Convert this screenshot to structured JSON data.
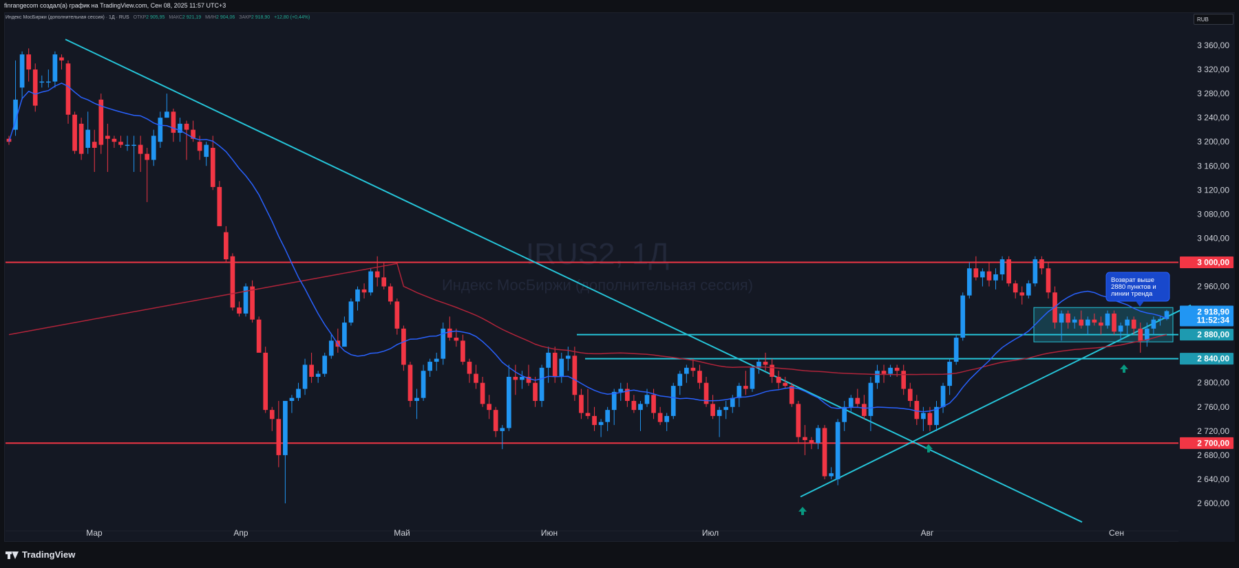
{
  "header": {
    "credit": "finrangecom создал(а) график на TradingView.com, Сен 08, 2025 11:57 UTC+3"
  },
  "legend": {
    "instrument": "Индекс МосБиржи (дополнительная сессия) · 1Д · RUS",
    "open_label": "ОТКР",
    "open": "2 905,95",
    "high_label": "МАКС",
    "high": "2 921,19",
    "low_label": "МИН",
    "low": "2 904,06",
    "close_label": "ЗАКР",
    "close": "2 918,90",
    "change": "+12,80 (+0,44%)"
  },
  "currency": "RUB",
  "watermark": {
    "symbol": "IRUS2, 1Д",
    "name": "Индекс МосБиржи (дополнительная сессия)"
  },
  "price_axis": {
    "ticks": [
      "3 360,00",
      "3 320,00",
      "3 280,00",
      "3 240,00",
      "3 200,00",
      "3 160,00",
      "3 120,00",
      "3 080,00",
      "3 040,00",
      "2 960,00",
      "2 880,00",
      "2 840,00",
      "2 800,00",
      "2 760,00",
      "2 720,00",
      "2 680,00",
      "2 640,00",
      "2 600,00"
    ],
    "tick_values": [
      3360,
      3320,
      3280,
      3240,
      3200,
      3160,
      3120,
      3080,
      3040,
      2960,
      2880,
      2840,
      2800,
      2760,
      2720,
      2680,
      2640,
      2600
    ],
    "range": [
      2580,
      3380
    ]
  },
  "price_labels": {
    "level_3000": "3 000,00",
    "level_2700": "2 700,00",
    "level_2880": "2 880,00",
    "level_2840": "2 840,00",
    "last_price": "2 918,90",
    "countdown": "11:52:34"
  },
  "time_axis": {
    "labels": [
      "Мар",
      "Апр",
      "Май",
      "Июн",
      "Июл",
      "Авг",
      "Сен"
    ]
  },
  "annotation": {
    "text_line1": "Возврат выше",
    "text_line2": "2880 пунктов и",
    "text_line3": "линии тренда"
  },
  "colors": {
    "up": "#2196f3",
    "down": "#f23645",
    "trend": "#26c6da",
    "ma_fast": "#2962ff",
    "ma_slow": "#b2243a",
    "level_red": "#f23645",
    "arrow": "#089981"
  },
  "chart_data": {
    "type": "candlestick",
    "candles_ohlc_approx": [
      [
        3205,
        3210,
        3195,
        3200
      ],
      [
        3220,
        3335,
        3210,
        3270
      ],
      [
        3290,
        3350,
        3270,
        3345
      ],
      [
        3345,
        3355,
        3300,
        3320
      ],
      [
        3320,
        3330,
        3250,
        3260
      ],
      [
        3300,
        3310,
        3290,
        3300
      ],
      [
        3300,
        3320,
        3290,
        3300
      ],
      [
        3300,
        3350,
        3290,
        3345
      ],
      [
        3340,
        3345,
        3320,
        3335
      ],
      [
        3330,
        3335,
        3230,
        3245
      ],
      [
        3245,
        3250,
        3180,
        3185
      ],
      [
        3230,
        3240,
        3170,
        3180
      ],
      [
        3190,
        3250,
        3180,
        3220
      ],
      [
        3200,
        3220,
        3150,
        3190
      ],
      [
        3270,
        3280,
        3180,
        3195
      ],
      [
        3210,
        3230,
        3150,
        3205
      ],
      [
        3205,
        3210,
        3190,
        3200
      ],
      [
        3200,
        3210,
        3190,
        3195
      ],
      [
        3195,
        3210,
        3185,
        3195
      ],
      [
        3195,
        3210,
        3150,
        3195
      ],
      [
        3195,
        3210,
        3150,
        3180
      ],
      [
        3180,
        3190,
        3100,
        3170
      ],
      [
        3170,
        3220,
        3160,
        3210
      ],
      [
        3200,
        3250,
        3190,
        3240
      ],
      [
        3240,
        3280,
        3240,
        3250
      ],
      [
        3250,
        3255,
        3200,
        3215
      ],
      [
        3215,
        3240,
        3200,
        3230
      ],
      [
        3230,
        3235,
        3170,
        3220
      ],
      [
        3220,
        3235,
        3200,
        3205
      ],
      [
        3200,
        3210,
        3170,
        3185
      ],
      [
        3175,
        3200,
        3160,
        3195
      ],
      [
        3190,
        3210,
        3120,
        3125
      ],
      [
        3125,
        3135,
        3060,
        3060
      ],
      [
        3050,
        3060,
        3000,
        3005
      ],
      [
        3010,
        3015,
        2920,
        2925
      ],
      [
        2925,
        2935,
        2910,
        2915
      ],
      [
        2915,
        2965,
        2910,
        2960
      ],
      [
        2960,
        2970,
        2900,
        2905
      ],
      [
        2905,
        2910,
        2850,
        2850
      ],
      [
        2850,
        2860,
        2750,
        2755
      ],
      [
        2755,
        2760,
        2720,
        2740
      ],
      [
        2740,
        2770,
        2660,
        2680
      ],
      [
        2680,
        2770,
        2600,
        2770
      ],
      [
        2770,
        2780,
        2750,
        2775
      ],
      [
        2775,
        2800,
        2770,
        2790
      ],
      [
        2790,
        2840,
        2780,
        2830
      ],
      [
        2830,
        2850,
        2800,
        2810
      ],
      [
        2810,
        2820,
        2800,
        2815
      ],
      [
        2815,
        2850,
        2810,
        2845
      ],
      [
        2845,
        2880,
        2840,
        2870
      ],
      [
        2870,
        2890,
        2850,
        2860
      ],
      [
        2860,
        2910,
        2860,
        2900
      ],
      [
        2900,
        2940,
        2895,
        2935
      ],
      [
        2935,
        2960,
        2920,
        2955
      ],
      [
        2955,
        2965,
        2940,
        2950
      ],
      [
        2950,
        2990,
        2945,
        2985
      ],
      [
        2985,
        3010,
        2960,
        2975
      ],
      [
        2975,
        3000,
        2955,
        2960
      ],
      [
        2960,
        2965,
        2930,
        2935
      ],
      [
        2935,
        2940,
        2880,
        2890
      ],
      [
        2890,
        2895,
        2820,
        2830
      ],
      [
        2830,
        2835,
        2760,
        2770
      ],
      [
        2770,
        2790,
        2740,
        2775
      ],
      [
        2775,
        2830,
        2770,
        2820
      ],
      [
        2820,
        2840,
        2810,
        2835
      ],
      [
        2835,
        2850,
        2820,
        2840
      ],
      [
        2840,
        2900,
        2830,
        2890
      ],
      [
        2890,
        2910,
        2870,
        2875
      ],
      [
        2875,
        2890,
        2860,
        2870
      ],
      [
        2870,
        2880,
        2830,
        2835
      ],
      [
        2835,
        2840,
        2800,
        2815
      ],
      [
        2815,
        2830,
        2790,
        2800
      ],
      [
        2800,
        2810,
        2760,
        2765
      ],
      [
        2765,
        2780,
        2740,
        2755
      ],
      [
        2755,
        2760,
        2710,
        2720
      ],
      [
        2720,
        2730,
        2690,
        2725
      ],
      [
        2725,
        2830,
        2720,
        2810
      ],
      [
        2810,
        2830,
        2780,
        2805
      ],
      [
        2805,
        2820,
        2790,
        2810
      ],
      [
        2810,
        2830,
        2795,
        2800
      ],
      [
        2800,
        2810,
        2760,
        2770
      ],
      [
        2770,
        2830,
        2760,
        2825
      ],
      [
        2825,
        2860,
        2800,
        2850
      ],
      [
        2850,
        2860,
        2800,
        2810
      ],
      [
        2810,
        2850,
        2800,
        2840
      ],
      [
        2840,
        2860,
        2820,
        2845
      ],
      [
        2845,
        2860,
        2770,
        2780
      ],
      [
        2780,
        2790,
        2740,
        2750
      ],
      [
        2750,
        2790,
        2740,
        2745
      ],
      [
        2745,
        2760,
        2720,
        2730
      ],
      [
        2730,
        2740,
        2710,
        2735
      ],
      [
        2735,
        2760,
        2720,
        2755
      ],
      [
        2755,
        2790,
        2730,
        2785
      ],
      [
        2785,
        2800,
        2770,
        2790
      ],
      [
        2790,
        2800,
        2760,
        2770
      ],
      [
        2770,
        2780,
        2750,
        2755
      ],
      [
        2755,
        2770,
        2720,
        2765
      ],
      [
        2765,
        2790,
        2760,
        2780
      ],
      [
        2780,
        2790,
        2740,
        2750
      ],
      [
        2750,
        2760,
        2730,
        2735
      ],
      [
        2735,
        2750,
        2720,
        2745
      ],
      [
        2745,
        2800,
        2740,
        2795
      ],
      [
        2795,
        2820,
        2780,
        2815
      ],
      [
        2815,
        2830,
        2800,
        2825
      ],
      [
        2825,
        2840,
        2810,
        2820
      ],
      [
        2820,
        2830,
        2790,
        2800
      ],
      [
        2800,
        2810,
        2760,
        2765
      ],
      [
        2765,
        2780,
        2740,
        2745
      ],
      [
        2745,
        2760,
        2710,
        2755
      ],
      [
        2755,
        2770,
        2740,
        2760
      ],
      [
        2760,
        2780,
        2750,
        2775
      ],
      [
        2775,
        2800,
        2760,
        2795
      ],
      [
        2795,
        2820,
        2780,
        2790
      ],
      [
        2790,
        2830,
        2785,
        2825
      ],
      [
        2825,
        2840,
        2815,
        2835
      ],
      [
        2835,
        2850,
        2820,
        2830
      ],
      [
        2830,
        2840,
        2800,
        2810
      ],
      [
        2810,
        2820,
        2790,
        2800
      ],
      [
        2800,
        2810,
        2790,
        2795
      ],
      [
        2795,
        2800,
        2760,
        2765
      ],
      [
        2765,
        2770,
        2700,
        2710
      ],
      [
        2710,
        2730,
        2680,
        2705
      ],
      [
        2705,
        2710,
        2690,
        2700
      ],
      [
        2700,
        2730,
        2690,
        2725
      ],
      [
        2725,
        2730,
        2640,
        2645
      ],
      [
        2645,
        2660,
        2640,
        2650
      ],
      [
        2640,
        2740,
        2630,
        2735
      ],
      [
        2735,
        2770,
        2720,
        2760
      ],
      [
        2760,
        2780,
        2750,
        2775
      ],
      [
        2775,
        2790,
        2760,
        2765
      ],
      [
        2765,
        2780,
        2740,
        2745
      ],
      [
        2745,
        2810,
        2720,
        2800
      ],
      [
        2800,
        2830,
        2790,
        2820
      ],
      [
        2820,
        2830,
        2800,
        2815
      ],
      [
        2815,
        2830,
        2810,
        2825
      ],
      [
        2825,
        2830,
        2810,
        2820
      ],
      [
        2820,
        2830,
        2780,
        2790
      ],
      [
        2790,
        2800,
        2760,
        2770
      ],
      [
        2770,
        2780,
        2730,
        2740
      ],
      [
        2740,
        2760,
        2720,
        2750
      ],
      [
        2750,
        2760,
        2720,
        2730
      ],
      [
        2730,
        2770,
        2720,
        2760
      ],
      [
        2760,
        2800,
        2750,
        2795
      ],
      [
        2795,
        2840,
        2780,
        2835
      ],
      [
        2835,
        2880,
        2830,
        2875
      ],
      [
        2875,
        2950,
        2870,
        2945
      ],
      [
        2945,
        3000,
        2940,
        2990
      ],
      [
        2990,
        3010,
        2970,
        2975
      ],
      [
        2975,
        2990,
        2960,
        2985
      ],
      [
        2985,
        3000,
        2960,
        2970
      ],
      [
        2970,
        2990,
        2955,
        2980
      ],
      [
        2980,
        3010,
        2970,
        3005
      ],
      [
        3005,
        3010,
        2960,
        2965
      ],
      [
        2965,
        2970,
        2940,
        2950
      ],
      [
        2950,
        2960,
        2930,
        2945
      ],
      [
        2945,
        2970,
        2940,
        2965
      ],
      [
        2965,
        3010,
        2960,
        3005
      ],
      [
        3005,
        3010,
        2980,
        2990
      ],
      [
        2990,
        3000,
        2940,
        2950
      ],
      [
        2950,
        2960,
        2890,
        2900
      ],
      [
        2900,
        2920,
        2870,
        2915
      ],
      [
        2915,
        2920,
        2890,
        2900
      ],
      [
        2900,
        2910,
        2890,
        2905
      ],
      [
        2905,
        2920,
        2890,
        2895
      ],
      [
        2895,
        2910,
        2880,
        2905
      ],
      [
        2905,
        2915,
        2895,
        2900
      ],
      [
        2900,
        2910,
        2880,
        2895
      ],
      [
        2895,
        2920,
        2890,
        2915
      ],
      [
        2915,
        2920,
        2880,
        2885
      ],
      [
        2885,
        2900,
        2870,
        2895
      ],
      [
        2895,
        2910,
        2880,
        2905
      ],
      [
        2905,
        2910,
        2880,
        2890
      ],
      [
        2890,
        2900,
        2850,
        2870
      ],
      [
        2870,
        2900,
        2860,
        2890
      ],
      [
        2890,
        2910,
        2880,
        2905
      ],
      [
        2905,
        2910,
        2895,
        2906
      ],
      [
        2906,
        2921,
        2904,
        2919
      ]
    ],
    "levels": [
      3000,
      2700,
      2880,
      2840
    ],
    "last": 2918.9,
    "xlabel": "",
    "ylabel": "",
    "ylim": [
      2580,
      3380
    ]
  }
}
